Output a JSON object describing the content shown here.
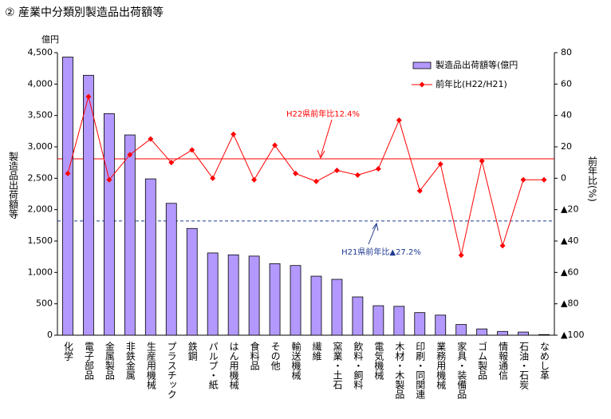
{
  "chart_data": {
    "type": "bar",
    "title": "② 産業中分類別製造品出荷額等",
    "y_unit": "億円",
    "y_label": "製造品出荷額等",
    "y2_label": "前年比(%)",
    "categories": [
      "化学",
      "電子部品",
      "金属製品",
      "非鉄金属",
      "生産用機械",
      "プラスチック",
      "鉄鋼",
      "パルプ・紙",
      "はん用機械",
      "食料品",
      "その他",
      "輸送機械",
      "繊維",
      "窯業・土石",
      "飲料・飼料",
      "電気機械",
      "木材・木製品",
      "印刷・同関連",
      "業務用機械",
      "家具・装備品",
      "ゴム製品",
      "情報通信",
      "石油・石炭",
      "なめし革"
    ],
    "series": [
      {
        "name": "製造品出荷額等(億円",
        "type": "bar",
        "axis": "y",
        "color": "#b399ff",
        "values": [
          4430,
          4140,
          3530,
          3190,
          2490,
          2100,
          1700,
          1310,
          1280,
          1260,
          1140,
          1110,
          940,
          890,
          610,
          470,
          460,
          360,
          320,
          170,
          100,
          60,
          50,
          10
        ]
      },
      {
        "name": "前年比(H22/H21)",
        "type": "line",
        "axis": "y2",
        "color": "#ff0000",
        "values": [
          3,
          52,
          -1,
          15,
          25,
          10,
          18,
          0,
          28,
          -1,
          21,
          3,
          -2,
          5,
          2,
          6,
          37,
          -8,
          9,
          -49,
          11,
          -43,
          -1,
          -1
        ]
      }
    ],
    "ylim": [
      0,
      4500
    ],
    "yticks": [
      0,
      500,
      {
        "value": 1000,
        "label": "1,000"
      },
      {
        "value": 1500,
        "label": "1,500"
      },
      {
        "value": 2000,
        "label": "2,000"
      },
      {
        "value": 2500,
        "label": "2,500"
      },
      {
        "value": 3000,
        "label": "3,000"
      },
      {
        "value": 3500,
        "label": "3,500"
      },
      {
        "value": 4000,
        "label": "4,000"
      },
      {
        "value": 4500,
        "label": "4,500"
      }
    ],
    "y2lim": [
      -100,
      80
    ],
    "y2ticks": [
      80,
      60,
      40,
      20,
      0,
      {
        "value": -20,
        "label": "▲20"
      },
      {
        "value": -40,
        "label": "▲40"
      },
      {
        "value": -60,
        "label": "▲60"
      },
      {
        "value": -80,
        "label": "▲80"
      },
      {
        "value": -100,
        "label": "▲100"
      }
    ],
    "reference_lines": [
      {
        "value": 12.4,
        "label": "H22県前年比12.4%",
        "color": "#ff0000",
        "style": "solid"
      },
      {
        "value": -27.2,
        "label": "H21県前年比▲27.2%",
        "color": "#1f3a93",
        "style": "dashed"
      }
    ],
    "legend": "top-right"
  }
}
